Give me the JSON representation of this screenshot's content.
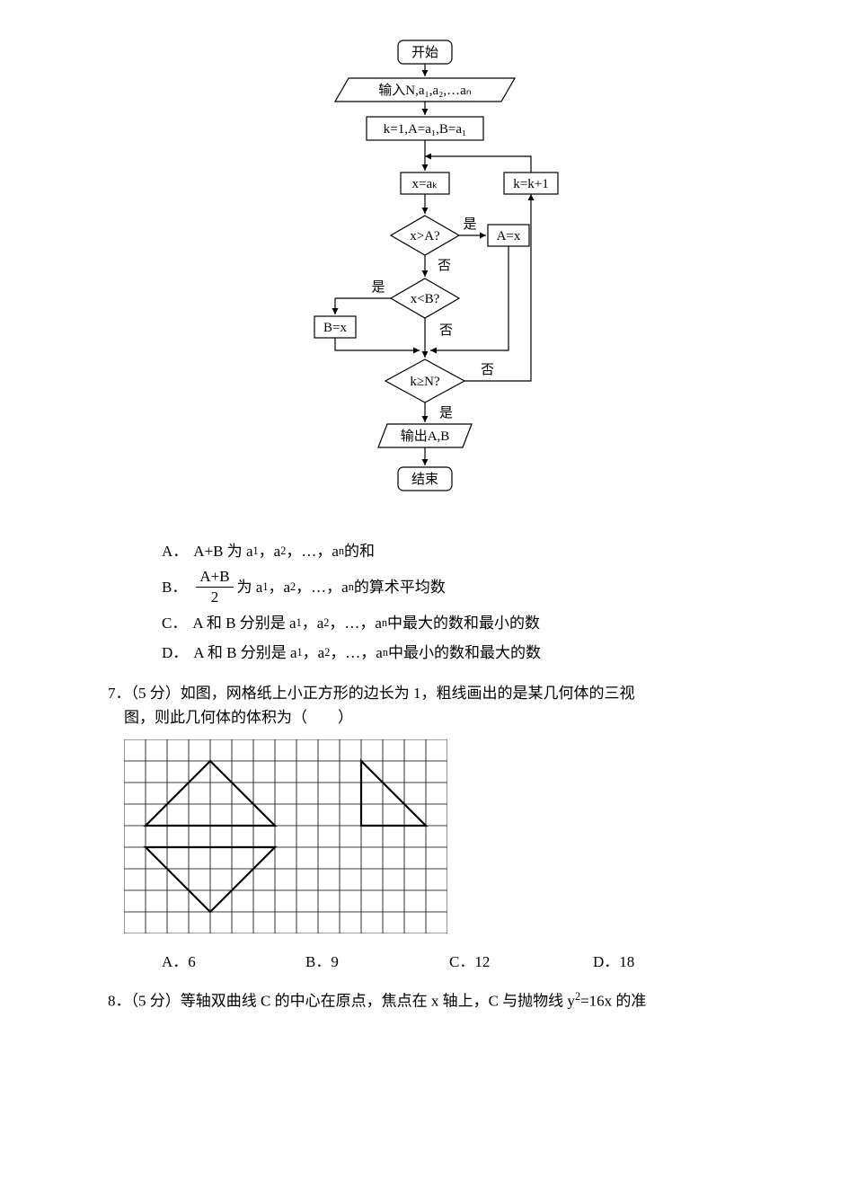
{
  "flowchart": {
    "type": "flowchart",
    "background_color": "#ffffff",
    "stroke_color": "#000000",
    "node_fill": "#ffffff",
    "font_size": 15,
    "yes_label": "是",
    "no_label": "否",
    "nodes": {
      "start": {
        "shape": "rounded",
        "label": "开始"
      },
      "input": {
        "shape": "parallelogram",
        "label": "输入N,a₁,a₂,…aₙ"
      },
      "init": {
        "shape": "rect",
        "label": "k=1,A=a₁,B=a₁"
      },
      "assign_x": {
        "shape": "rect",
        "label": "x=aₖ"
      },
      "inc_k": {
        "shape": "rect",
        "label": "k=k+1"
      },
      "dec_xA": {
        "shape": "diamond",
        "label": "x>A?"
      },
      "set_A": {
        "shape": "rect",
        "label": "A=x"
      },
      "dec_xB": {
        "shape": "diamond",
        "label": "x<B?"
      },
      "set_B": {
        "shape": "rect",
        "label": "B=x"
      },
      "dec_kN": {
        "shape": "diamond",
        "label": "k≥N?"
      },
      "output": {
        "shape": "parallelogram",
        "label": "输出A,B"
      },
      "end": {
        "shape": "rounded",
        "label": "结束"
      }
    },
    "edges": [
      {
        "from": "start",
        "to": "input"
      },
      {
        "from": "input",
        "to": "init"
      },
      {
        "from": "init",
        "to": "assign_x"
      },
      {
        "from": "assign_x",
        "to": "dec_xA"
      },
      {
        "from": "dec_xA",
        "to": "set_A",
        "label": "是"
      },
      {
        "from": "dec_xA",
        "to": "dec_xB",
        "label": "否"
      },
      {
        "from": "dec_xB",
        "to": "set_B",
        "label": "是"
      },
      {
        "from": "dec_xB",
        "to": "dec_kN",
        "label": "否"
      },
      {
        "from": "set_A",
        "to": "dec_kN"
      },
      {
        "from": "set_B",
        "to": "dec_kN"
      },
      {
        "from": "dec_kN",
        "to": "inc_k",
        "label": "否"
      },
      {
        "from": "inc_k",
        "to": "assign_x"
      },
      {
        "from": "dec_kN",
        "to": "output",
        "label": "是"
      },
      {
        "from": "output",
        "to": "end"
      }
    ]
  },
  "q6_options": {
    "A_label": "A．",
    "A_text1": "A+B 为 a",
    "A_text2": "，a",
    "A_text3": "，…，a",
    "A_text4": " 的和",
    "B_label": "B．",
    "B_frac_num": "A+B",
    "B_frac_den": "2",
    "B_text1": "为 a",
    "B_text2": "，a",
    "B_text3": "，…，a",
    "B_text4": " 的算术平均数",
    "C_label": "C．",
    "C_text1": "A 和 B 分别是 a",
    "C_text2": "，a",
    "C_text3": "，…，a",
    "C_text4": " 中最大的数和最小的数",
    "D_label": "D．",
    "D_text1": "A 和 B 分别是 a",
    "D_text2": "，a",
    "D_text3": "，…，a",
    "D_text4": " 中最小的数和最大的数",
    "sub1": "1",
    "sub2": "2",
    "subn": "n"
  },
  "q7": {
    "line1": "7．（5 分）如图，网格纸上小正方形的边长为 1，粗线画出的是某几何体的三视",
    "line2": "图，则此几何体的体积为（　　）",
    "grid": {
      "type": "infographic",
      "cols": 15,
      "rows": 9,
      "cell": 24,
      "grid_color": "#000000",
      "grid_width": 0.8,
      "background_color": "#ffffff",
      "bold_width": 2.2,
      "triangles": [
        {
          "points_cells": [
            [
              1,
              4
            ],
            [
              7,
              4
            ],
            [
              4,
              1
            ]
          ],
          "closed": true
        },
        {
          "points_cells": [
            [
              11,
              4
            ],
            [
              14,
              4
            ],
            [
              11,
              1
            ]
          ],
          "closed": true
        },
        {
          "points_cells": [
            [
              1,
              5
            ],
            [
              7,
              5
            ],
            [
              4,
              8
            ]
          ],
          "closed": true
        }
      ]
    },
    "options": {
      "A": "A．6",
      "B": "B．9",
      "C": "C．12",
      "D": "D．18"
    }
  },
  "q8": {
    "line1_a": "8．（5 分）等轴双曲线 C 的中心在原点，焦点在 x 轴上，C 与抛物线 y",
    "line1_sup": "2",
    "line1_b": "=16x 的准"
  }
}
